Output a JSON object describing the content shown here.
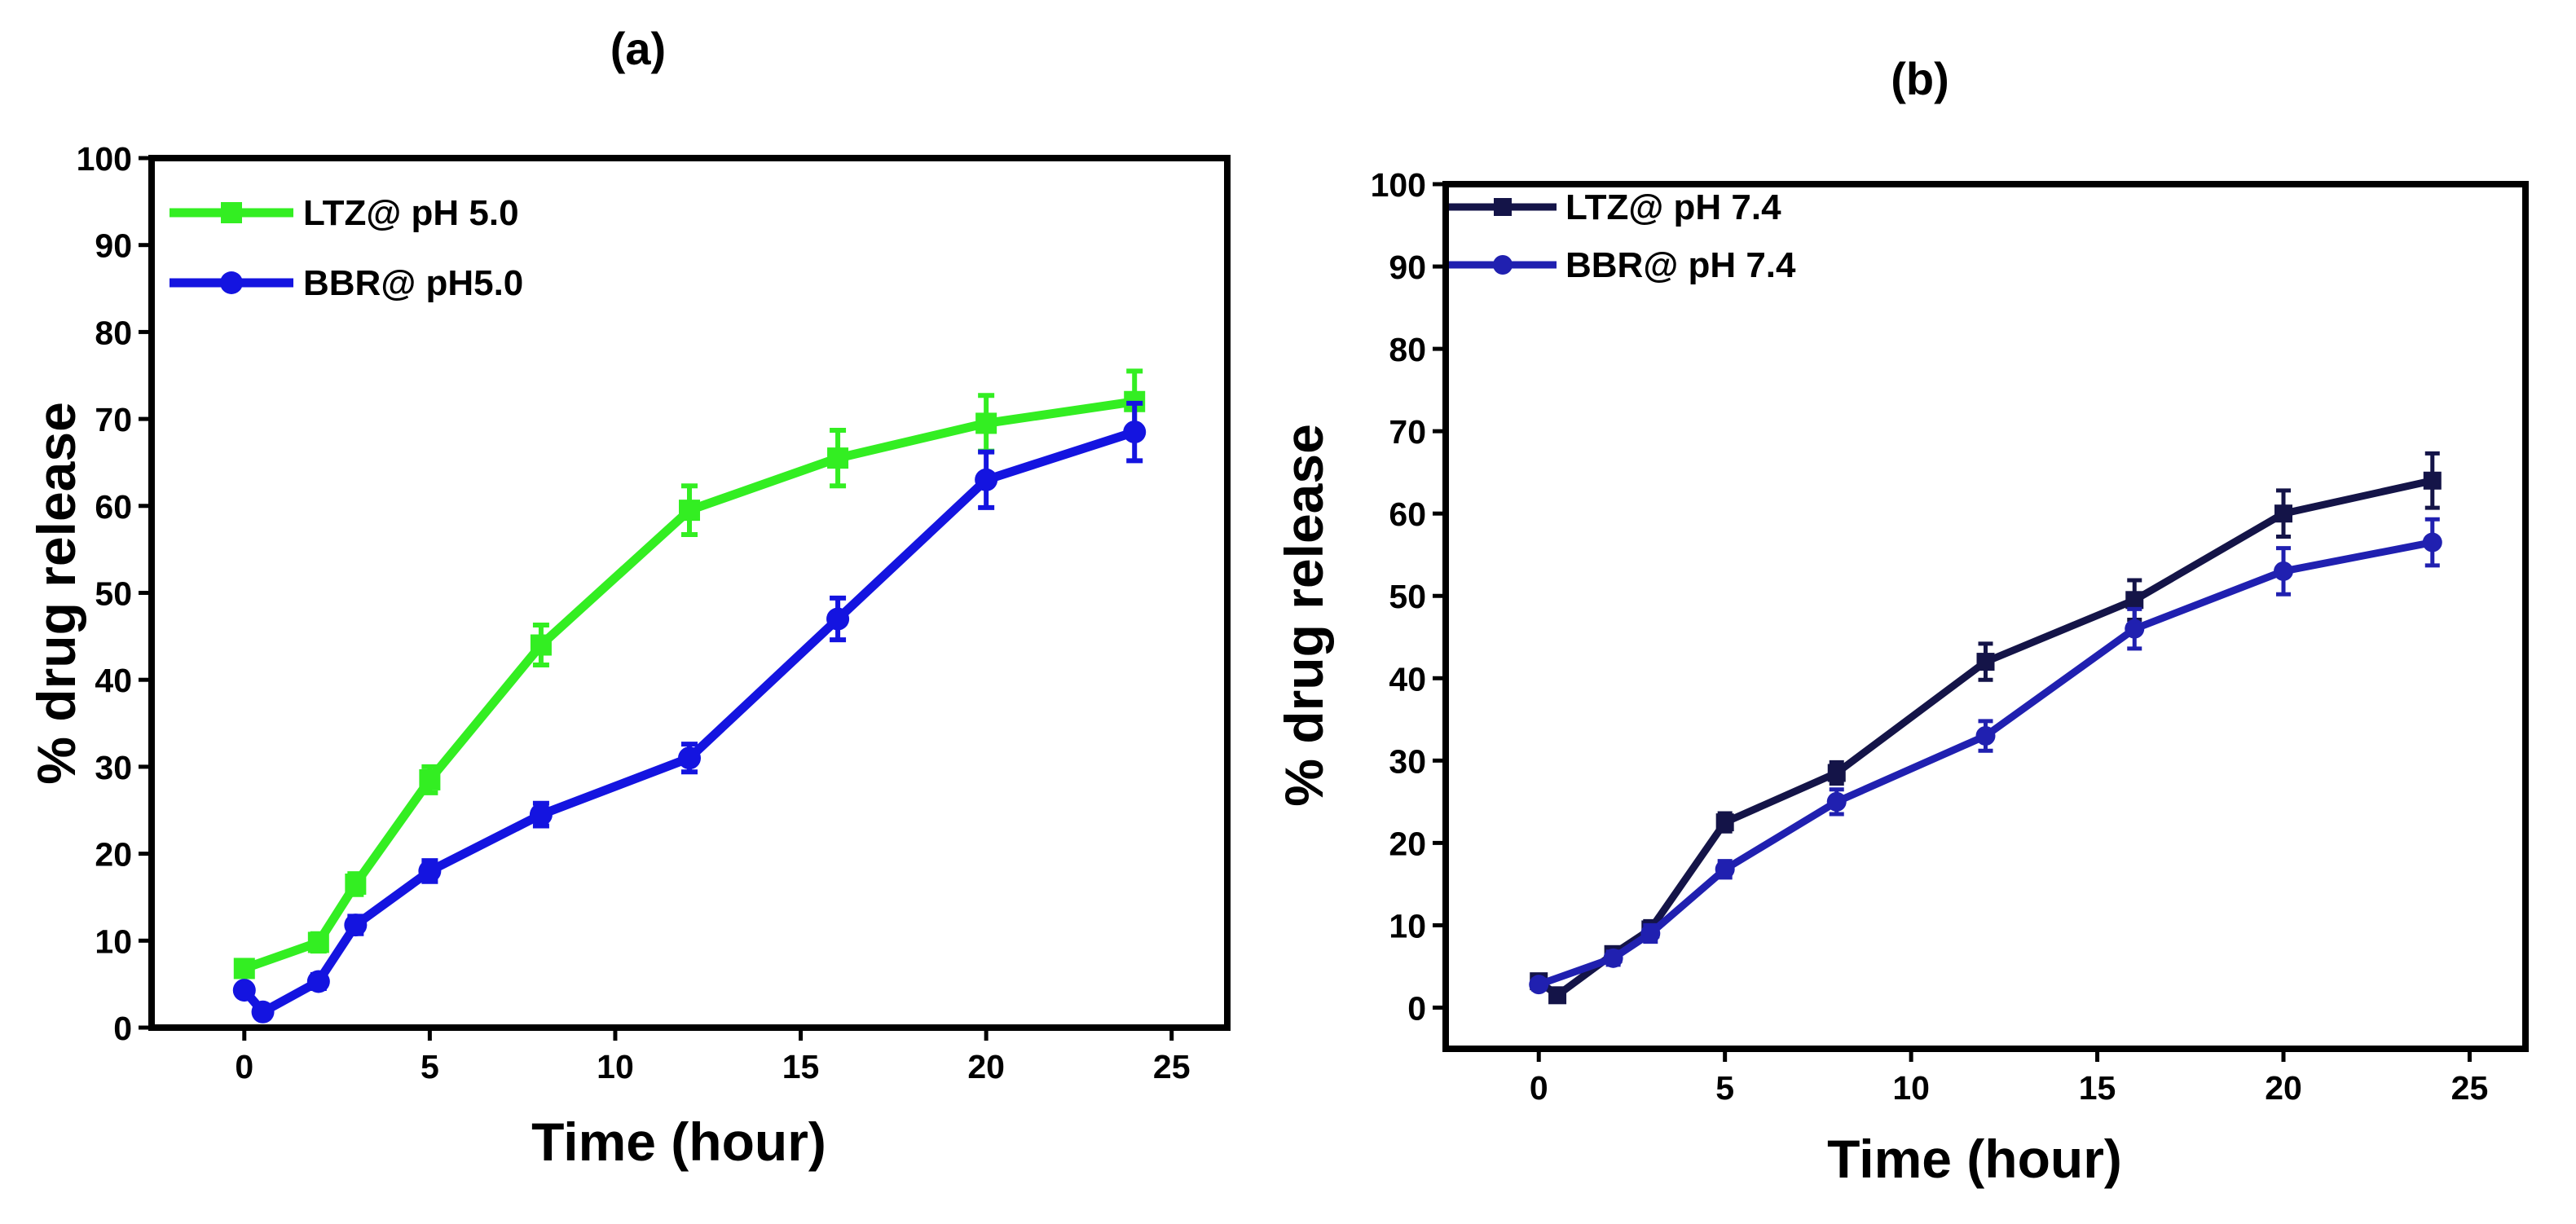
{
  "chart_data": [
    {
      "type": "line",
      "panel_label": "(a)",
      "title": "",
      "xlabel": "Time (hour)",
      "ylabel": "% drug release",
      "xlim": [
        -2.5,
        26.5
      ],
      "ylim": [
        0,
        100
      ],
      "xticks": [
        0,
        5,
        10,
        15,
        20,
        25
      ],
      "yticks": [
        0,
        10,
        20,
        30,
        40,
        50,
        60,
        70,
        80,
        90,
        100
      ],
      "xtick_labels": [
        "0",
        "5",
        "10",
        "15",
        "20",
        "25"
      ],
      "ytick_labels": [
        "0",
        "10",
        "20",
        "30",
        "40",
        "50",
        "60",
        "70",
        "80",
        "90",
        "100"
      ],
      "legend_position": "top-left",
      "grid": false,
      "series": [
        {
          "name": "LTZ@ pH 5.0",
          "color": "#33ee22",
          "marker": "square",
          "x": [
            0,
            2,
            3,
            5,
            8,
            12,
            16,
            20,
            24
          ],
          "y": [
            6.8,
            9.8,
            16.5,
            28.5,
            44.0,
            59.5,
            65.5,
            69.5,
            72.0
          ],
          "err": [
            0.8,
            1.0,
            1.2,
            1.5,
            2.3,
            2.8,
            3.2,
            3.2,
            3.5
          ]
        },
        {
          "name": "BBR@ pH5.0",
          "color": "#1414e0",
          "marker": "circle",
          "x": [
            0,
            0.5,
            2,
            3,
            5,
            8,
            12,
            16,
            20,
            24
          ],
          "y": [
            4.3,
            1.8,
            5.3,
            11.8,
            18.0,
            24.5,
            31.0,
            47.0,
            63.0,
            68.5
          ],
          "err": [
            0.6,
            0.6,
            0.8,
            1.0,
            1.2,
            1.3,
            1.6,
            2.4,
            3.2,
            3.3
          ]
        }
      ]
    },
    {
      "type": "line",
      "panel_label": "(b)",
      "title": "",
      "xlabel": "Time (hour)",
      "ylabel": "% drug release",
      "xlim": [
        -2.5,
        26.5
      ],
      "ylim": [
        -5,
        100
      ],
      "xticks": [
        0,
        5,
        10,
        15,
        20,
        25
      ],
      "yticks": [
        0,
        10,
        20,
        30,
        40,
        50,
        60,
        70,
        80,
        90,
        100
      ],
      "xtick_labels": [
        "0",
        "5",
        "10",
        "15",
        "20",
        "25"
      ],
      "ytick_labels": [
        "0",
        "10",
        "20",
        "30",
        "40",
        "50",
        "60",
        "70",
        "80",
        "90",
        "100"
      ],
      "legend_position": "top-left",
      "grid": false,
      "series": [
        {
          "name": "LTZ@ pH 7.4",
          "color": "#141448",
          "marker": "square",
          "x": [
            0,
            0.5,
            2,
            3,
            5,
            8,
            12,
            16,
            20,
            24
          ],
          "y": [
            3.2,
            1.5,
            6.5,
            9.5,
            22.5,
            28.5,
            42.0,
            49.5,
            60.0,
            64.0
          ],
          "err": [
            0.6,
            0.6,
            0.8,
            1.0,
            1.1,
            1.3,
            2.2,
            2.4,
            2.8,
            3.3
          ]
        },
        {
          "name": "BBR@ pH 7.4",
          "color": "#2020b0",
          "marker": "circle",
          "x": [
            0,
            2,
            3,
            5,
            8,
            12,
            16,
            20,
            24
          ],
          "y": [
            2.8,
            6.0,
            9.0,
            16.8,
            25.0,
            33.0,
            46.0,
            53.0,
            56.5
          ],
          "err": [
            0.6,
            0.8,
            1.0,
            1.0,
            1.5,
            1.8,
            2.4,
            2.8,
            2.8
          ]
        }
      ]
    }
  ]
}
